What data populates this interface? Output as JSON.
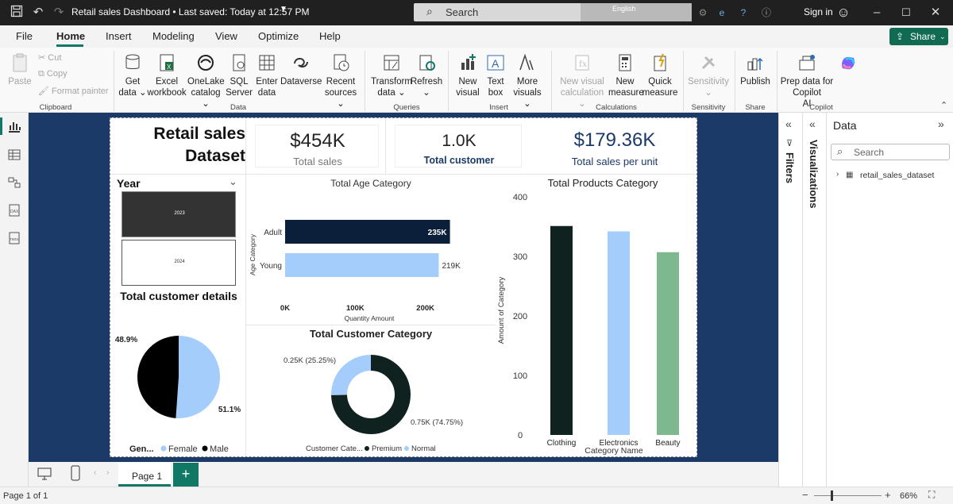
{
  "titlebar": {
    "title": "Retail sales Dashboard • Last saved: Today at 12:57 PM",
    "search_placeholder": "Search",
    "language": "English",
    "sign_in": "Sign in"
  },
  "menu": {
    "items": [
      "File",
      "Home",
      "Insert",
      "Modeling",
      "View",
      "Optimize",
      "Help"
    ],
    "active": "Home",
    "share": "Share"
  },
  "ribbon": {
    "clipboard": {
      "paste": "Paste",
      "cut": "Cut",
      "copy": "Copy",
      "format_painter": "Format painter",
      "group": "Clipboard"
    },
    "data": {
      "get_data": [
        "Get",
        "data ⌄"
      ],
      "excel": [
        "Excel",
        "workbook"
      ],
      "onelake": [
        "OneLake",
        "catalog ⌄"
      ],
      "sql": [
        "SQL",
        "Server"
      ],
      "enter": [
        "Enter",
        "data"
      ],
      "dataverse": [
        "Dataverse",
        ""
      ],
      "recent": [
        "Recent",
        "sources ⌄"
      ],
      "group": "Data"
    },
    "queries": {
      "transform": [
        "Transform",
        "data ⌄"
      ],
      "refresh": [
        "Refresh",
        "⌄"
      ],
      "group": "Queries"
    },
    "insert": {
      "new_visual": [
        "New",
        "visual"
      ],
      "text_box": [
        "Text",
        "box"
      ],
      "more_visuals": [
        "More",
        "visuals ⌄"
      ],
      "group": "Insert"
    },
    "calculations": {
      "new_visual_calc": [
        "New visual",
        "calculation ⌄"
      ],
      "new_measure": [
        "New",
        "measure"
      ],
      "quick_measure": [
        "Quick",
        "measure"
      ],
      "group": "Calculations"
    },
    "sensitivity": {
      "label": [
        "Sensitivity",
        "⌄"
      ],
      "group": "Sensitivity"
    },
    "share": {
      "publish": [
        "Publish",
        ""
      ],
      "group": "Share"
    },
    "copilot": {
      "prep": [
        "Prep data for Copilot",
        "AI"
      ],
      "group": "Copilot"
    }
  },
  "report": {
    "title": [
      "Retail sales",
      "Dataset"
    ],
    "kpis": [
      {
        "value": "$454K",
        "label": "Total sales"
      },
      {
        "value": "1.0K",
        "label": "Total customer"
      },
      {
        "value": "$179.36K",
        "label": "Total sales per unit"
      }
    ],
    "slicer": {
      "title": "Year",
      "options": [
        "2023",
        "2024"
      ],
      "selected": "2023"
    },
    "customer_details_title": "Total customer details"
  },
  "chart_data": [
    {
      "type": "bar",
      "orientation": "horizontal",
      "title": "Total Age Category",
      "categories": [
        "Adult",
        "Young"
      ],
      "values": [
        235,
        219
      ],
      "data_labels": [
        "235K",
        "219K"
      ],
      "xlabel": "Quantity Amount",
      "ylabel": "Age Category",
      "x_ticks": [
        "0K",
        "100K",
        "200K"
      ],
      "xlim": [
        0,
        240
      ],
      "colors": [
        "#0b1f3a",
        "#a4cdfc"
      ]
    },
    {
      "type": "bar",
      "title": "Total Products Category",
      "categories": [
        "Clothing",
        "Electronics",
        "Beauty"
      ],
      "values": [
        351,
        342,
        307
      ],
      "xlabel": "Category Name",
      "ylabel": "Amount of Category",
      "y_ticks": [
        "0",
        "100",
        "200",
        "300",
        "400"
      ],
      "ylim": [
        0,
        400
      ],
      "colors": [
        "#10221f",
        "#a4cdfc",
        "#7db88f"
      ]
    },
    {
      "type": "pie",
      "legend_title": "Gen...",
      "categories": [
        "Female",
        "Male"
      ],
      "values": [
        51.1,
        48.9
      ],
      "data_labels": [
        "51.1%",
        "48.9%"
      ],
      "colors": [
        "#a4cdfc",
        "#000000"
      ]
    },
    {
      "type": "pie",
      "subtype": "donut",
      "title": "Total Customer Category",
      "legend_title": "Customer Cate...",
      "categories": [
        "Premium",
        "Normal"
      ],
      "values": [
        74.75,
        25.25
      ],
      "data_labels": [
        "0.75K (74.75%)",
        "0.25K (25.25%)"
      ],
      "colors": [
        "#10221f",
        "#a4cdfc"
      ]
    }
  ],
  "panes": {
    "filters": "Filters",
    "visualizations": "Visualizations",
    "data_title": "Data",
    "data_search": "Search",
    "table": "retail_sales_dataset"
  },
  "tabs": {
    "page": "Page 1",
    "add": "+"
  },
  "status": {
    "page_of": "Page 1 of 1",
    "zoom": "66%"
  }
}
